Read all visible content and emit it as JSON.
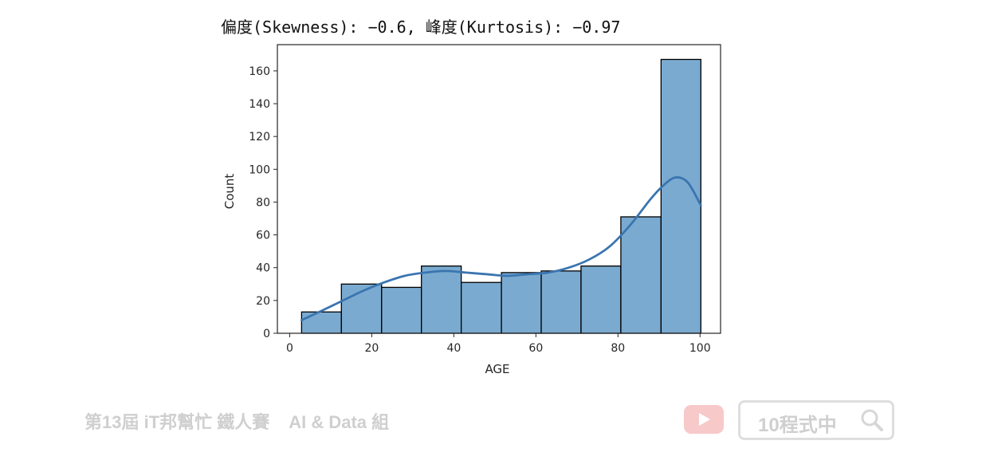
{
  "chart_data": {
    "type": "bar",
    "title": "偏度(Skewness): −0.6, 峰度(Kurtosis): −0.97",
    "xlabel": "AGE",
    "ylabel": "Count",
    "xlim": [
      -3,
      105
    ],
    "ylim": [
      0,
      176
    ],
    "x_ticks": [
      0,
      20,
      40,
      60,
      80,
      100
    ],
    "y_ticks": [
      0,
      20,
      40,
      60,
      80,
      100,
      120,
      140,
      160
    ],
    "bins": [
      {
        "x0": 2.9,
        "x1": 12.6,
        "count": 13
      },
      {
        "x0": 12.6,
        "x1": 22.4,
        "count": 30
      },
      {
        "x0": 22.4,
        "x1": 32.1,
        "count": 28
      },
      {
        "x0": 32.1,
        "x1": 41.8,
        "count": 41
      },
      {
        "x0": 41.8,
        "x1": 51.6,
        "count": 31
      },
      {
        "x0": 51.6,
        "x1": 61.3,
        "count": 37
      },
      {
        "x0": 61.3,
        "x1": 71.0,
        "count": 38
      },
      {
        "x0": 71.0,
        "x1": 80.7,
        "count": 41
      },
      {
        "x0": 80.7,
        "x1": 90.5,
        "count": 71
      },
      {
        "x0": 90.5,
        "x1": 100.2,
        "count": 167
      }
    ],
    "kde": {
      "x": [
        2.9,
        8,
        13,
        18,
        23,
        28,
        33,
        38,
        43,
        48,
        53,
        58,
        63,
        68,
        73,
        78,
        83,
        88,
        91,
        94,
        97,
        100.2
      ],
      "y": [
        8,
        14,
        20,
        26,
        31,
        35,
        37,
        38,
        37,
        36,
        35,
        36,
        37,
        40,
        45,
        53,
        66,
        82,
        90,
        95,
        92,
        78
      ]
    },
    "bar_color": "#7aaad0",
    "bar_edge_color": "#000000",
    "kde_color": "#3a75b0",
    "grid": false
  },
  "footer": {
    "event_title": "第13屆 iT邦幫忙 鐵人賽",
    "event_group": "AI & Data 組",
    "search_text": "10程式中"
  },
  "colors": {
    "footer_text": "#cfcfcf",
    "youtube_badge": "#f7c9c9",
    "search_border": "#dedede"
  }
}
